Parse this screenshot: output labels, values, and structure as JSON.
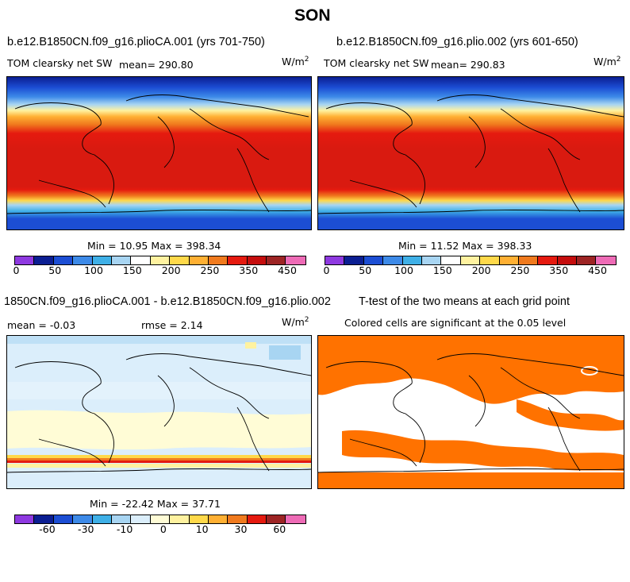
{
  "title": "SON",
  "panels": [
    {
      "id": "p1",
      "case_title": "b.e12.B1850CN.f09_g16.plioCA.001 (yrs 701-750)",
      "variable": "TOM clearsky net SW",
      "mean_text": "mean=  290.80",
      "units": "W/m",
      "units_sup": "2",
      "minmax": "Min =  10.95 Max = 398.34"
    },
    {
      "id": "p2",
      "case_title": "b.e12.B1850CN.f09_g16.plio.002 (yrs 601-650)",
      "variable": "TOM clearsky net SW",
      "mean_text": "mean=  290.83",
      "units": "W/m",
      "units_sup": "2",
      "minmax": "Min =  11.52 Max = 398.33"
    },
    {
      "id": "p3",
      "case_title": "1850CN.f09_g16.plioCA.001 - b.e12.B1850CN.f09_g16.plio.002",
      "mean_text": "mean =  -0.03",
      "rmse_text": "rmse =    2.14",
      "units": "W/m",
      "units_sup": "2",
      "minmax": "Min = -22.42 Max =  37.71"
    },
    {
      "id": "p4",
      "case_title": "T-test of the two means at each grid point",
      "subtitle": "Colored cells are significant at the 0.05 level"
    }
  ],
  "colorbars": {
    "abs": {
      "colors": [
        "#8e39e0",
        "#0b1e92",
        "#1c4ed4",
        "#3d8ae8",
        "#3fb0e7",
        "#a8d5f2",
        "#ffffff",
        "#fff2a0",
        "#ffd94a",
        "#ffb033",
        "#f07a1e",
        "#e51a0f",
        "#c50d0d",
        "#9d2424",
        "#ee6bb6"
      ],
      "tick_labels": [
        "0",
        "50",
        "100",
        "150",
        "200",
        "250",
        "350",
        "450"
      ]
    },
    "diff": {
      "colors": [
        "#8e39e0",
        "#0b1e92",
        "#1c4ed4",
        "#3d8ae8",
        "#3fb0e7",
        "#a8d5f2",
        "#dbeefb",
        "#fffcd6",
        "#fff2a0",
        "#ffd94a",
        "#ffb033",
        "#f07a1e",
        "#e51a0f",
        "#9d2424",
        "#ee6bb6"
      ],
      "tick_labels": [
        "-60",
        "-30",
        "-10",
        "0",
        "10",
        "30",
        "60"
      ]
    }
  },
  "colors": {
    "significance": "#ff7200",
    "coast": "#000000"
  }
}
